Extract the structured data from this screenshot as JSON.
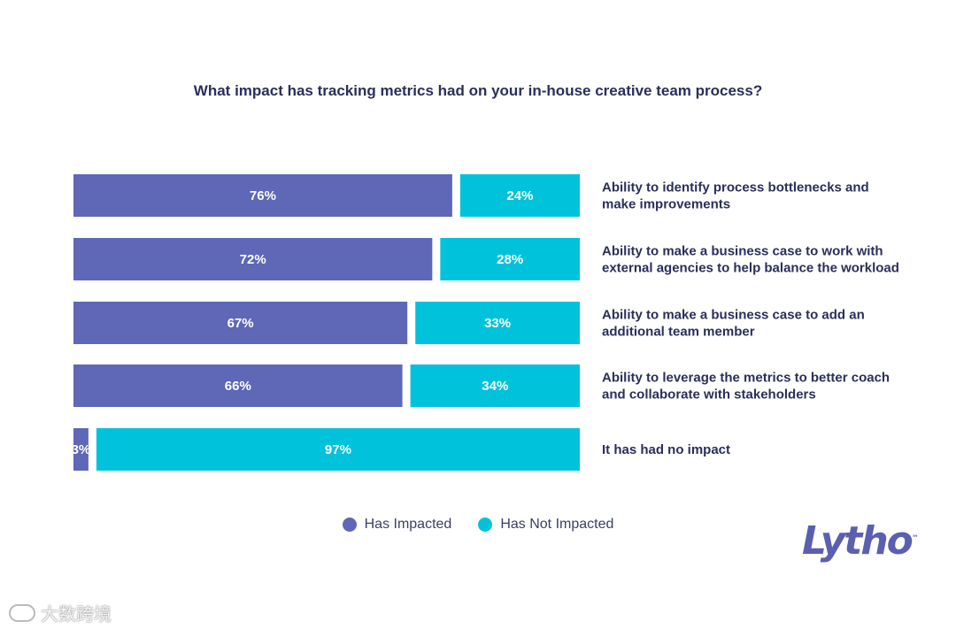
{
  "chart_data": {
    "type": "bar",
    "orientation": "horizontal",
    "stacked": true,
    "title": "What impact has tracking metrics had on your in-house creative team process?",
    "categories": [
      [
        "Ability to identify process bottlenecks and",
        "make improvements"
      ],
      [
        "Ability to make a business case to work with",
        "external agencies to help balance the workload"
      ],
      [
        "Ability to make a business case to add an",
        "additional team member"
      ],
      [
        "Ability to leverage the metrics to better coach",
        "and collaborate with stakeholders"
      ],
      [
        "It has had no impact"
      ]
    ],
    "series": [
      {
        "name": "Has Impacted",
        "color": "#5f67b7",
        "values": [
          76,
          72,
          67,
          66,
          3
        ],
        "labels": [
          "76%",
          "72%",
          "67%",
          "66%",
          "3%"
        ]
      },
      {
        "name": "Has Not Impacted",
        "color": "#00c3db",
        "values": [
          24,
          28,
          33,
          34,
          97
        ],
        "labels": [
          "24%",
          "28%",
          "33%",
          "34%",
          "97%"
        ]
      }
    ],
    "xlim": [
      0,
      100
    ],
    "legend": "bottom-center",
    "grid": false
  },
  "brand": {
    "logo_text": "Lytho",
    "logo_mark": "™",
    "color": "#5b5fb0"
  },
  "watermark": {
    "text": "大数跨境"
  }
}
